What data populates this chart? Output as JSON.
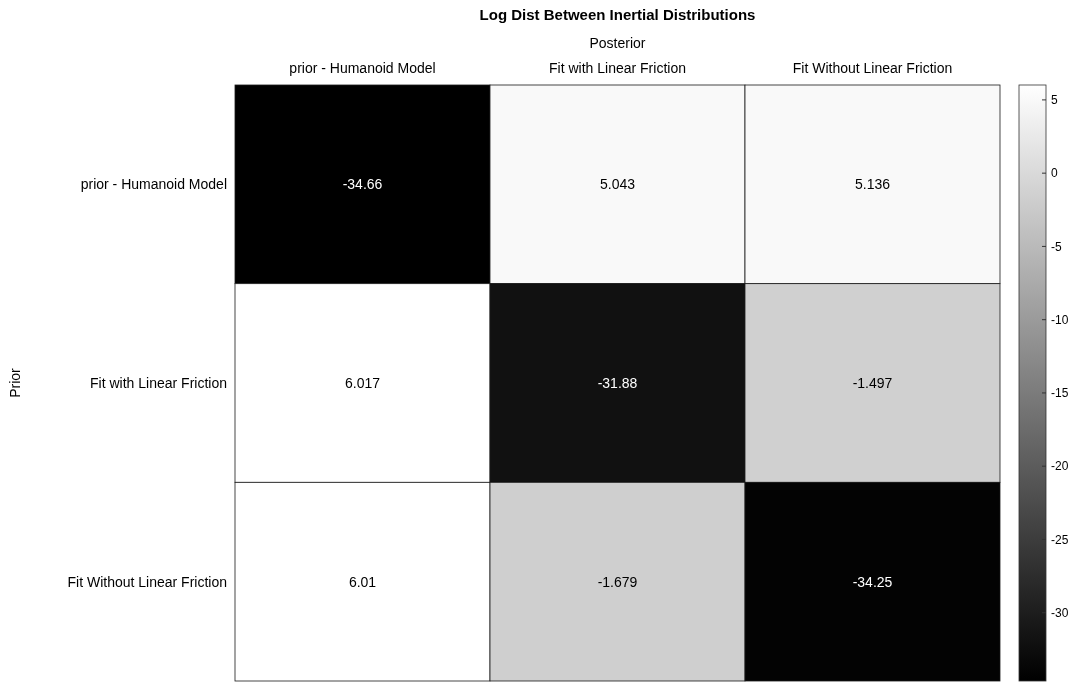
{
  "chart_data": {
    "type": "heatmap",
    "title": "Log Dist Between Inertial Distributions",
    "xlabel": "Posterior",
    "ylabel": "Prior",
    "categories": [
      "prior - Humanoid Model",
      "Fit with Linear Friction",
      "Fit Without Linear Friction"
    ],
    "y_categories": [
      "prior - Humanoid Model",
      "Fit with Linear Friction",
      "Fit Without Linear Friction"
    ],
    "cells": [
      [
        -34.66,
        5.043,
        5.136
      ],
      [
        6.017,
        -31.88,
        -1.497
      ],
      [
        6.01,
        -1.679,
        -34.25
      ]
    ],
    "cell_labels": [
      [
        "-34.66",
        "5.043",
        "5.136"
      ],
      [
        "6.017",
        "-31.88",
        "-1.497"
      ],
      [
        "6.01",
        "-1.679",
        "-34.25"
      ]
    ],
    "clim": [
      -34.66,
      6.017
    ],
    "cticks": [
      5,
      0,
      -5,
      -10,
      -15,
      -20,
      -25,
      -30
    ]
  }
}
